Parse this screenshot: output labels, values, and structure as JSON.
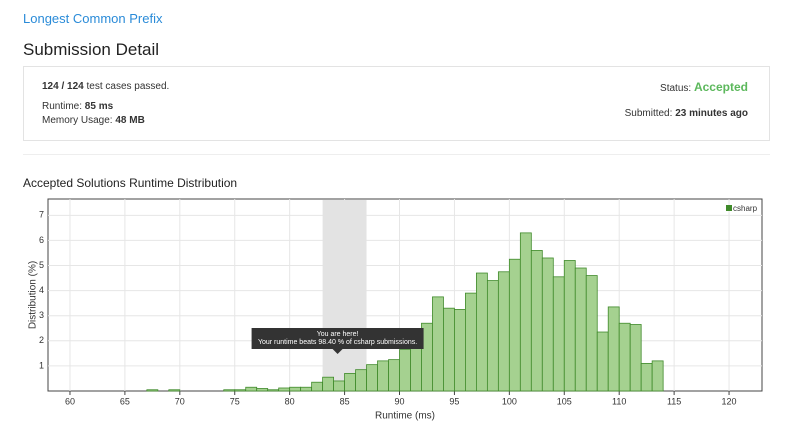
{
  "problem_title": "Longest Common Prefix",
  "heading": "Submission Detail",
  "summary": {
    "passed": "124 / 124",
    "passed_text": "test cases passed.",
    "runtime_label": "Runtime:",
    "runtime": "85 ms",
    "memory_label": "Memory Usage:",
    "memory": "48 MB",
    "status_label": "Status:",
    "status": "Accepted",
    "submitted_label": "Submitted:",
    "submitted": "23 minutes ago"
  },
  "chart_data": {
    "type": "histogram",
    "title": "Accepted Solutions Runtime Distribution",
    "xlabel": "Runtime (ms)",
    "ylabel": "Distribution (%)",
    "bins": [
      67,
      68,
      69,
      70,
      71,
      72,
      73,
      74,
      75,
      76,
      77,
      78,
      79,
      80,
      81,
      82,
      83,
      84,
      85,
      86,
      87,
      88,
      89,
      90,
      91,
      92,
      93,
      94,
      95,
      96,
      97,
      98,
      99,
      100,
      101,
      102,
      103,
      104,
      105,
      106,
      107,
      108,
      109,
      110,
      111,
      112,
      113,
      114
    ],
    "series": [
      {
        "name": "csharp",
        "color": "#a5d190",
        "edge_color": "#3f8a2a",
        "values": [
          0.05,
          0,
          0.05,
          0,
          0,
          0,
          0,
          0.05,
          0.05,
          0.15,
          0.1,
          0.05,
          0.12,
          0.15,
          0.15,
          0.35,
          0.55,
          0.4,
          0.7,
          0.85,
          1.05,
          1.2,
          1.25,
          1.65,
          2.1,
          2.7,
          3.75,
          3.3,
          3.25,
          3.9,
          4.7,
          4.4,
          4.75,
          5.25,
          6.3,
          5.6,
          5.3,
          4.55,
          5.2,
          4.9,
          4.6,
          2.35,
          3.35,
          2.7,
          2.65,
          1.1,
          1.2
        ]
      }
    ],
    "xlim": [
      58,
      123
    ],
    "ylim": [
      0,
      7.65
    ],
    "xticks": [
      60,
      65,
      70,
      75,
      80,
      85,
      90,
      95,
      100,
      105,
      110,
      115,
      120
    ],
    "yticks": [
      1,
      2,
      3,
      4,
      5,
      6,
      7
    ],
    "grid": true,
    "legend_position": "upper right",
    "highlight": [
      83,
      87
    ],
    "tooltip": {
      "title": "You are here!",
      "text": "Your runtime beats 98.40 % of csharp submissions."
    }
  }
}
